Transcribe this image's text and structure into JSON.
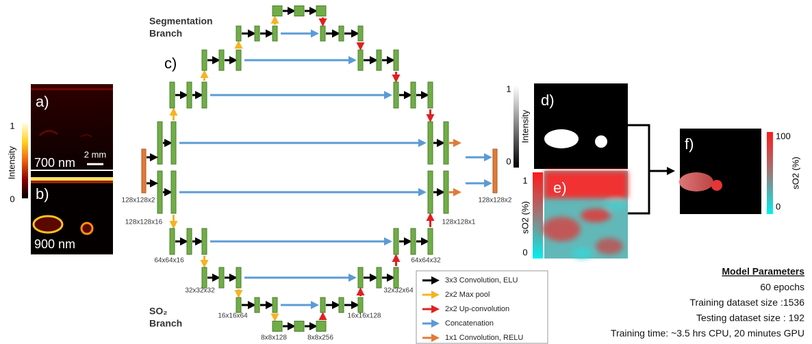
{
  "panel_labels": [
    "a)",
    "b)",
    "c)",
    "d)",
    "e)",
    "f)"
  ],
  "image_a": {
    "wavelength": "700 nm",
    "scale": "2 mm"
  },
  "image_b": {
    "wavelength": "900 nm"
  },
  "colorbar_ab": {
    "label": "Intensity",
    "max": "1",
    "min": "0"
  },
  "colorbar_d": {
    "label": "Intensity",
    "max": "1",
    "min": "0"
  },
  "colorbar_e": {
    "label": "sO2 (%)",
    "max": "1",
    "min": "0"
  },
  "colorbar_f": {
    "label": "sO2 (%)",
    "max": "100",
    "min": "0"
  },
  "network": {
    "segmentation_branch": [
      "Segmentation",
      "Branch"
    ],
    "so2_branch": [
      "SO₂",
      "Branch"
    ],
    "sizes": [
      "128x128x2",
      "128x128x16",
      "64x64x16",
      "32x32x32",
      "16x16x64",
      "8x8x128",
      "8x8x256",
      "16x16x128",
      "32x32x64",
      "64x64x32",
      "128x128x1",
      "128x128x2"
    ]
  },
  "legend": [
    "3x3 Convolution, ELU",
    "2x2 Max pool",
    "2x2 Up-convolution",
    "Concatenation",
    "1x1 Convolution, RELU"
  ],
  "model_parameters": {
    "title": "Model Parameters",
    "lines": [
      "60 epochs",
      "Training dataset size :1536",
      "Testing dataset size : 192",
      "Training time: ~3.5 hrs CPU, 20 minutes GPU"
    ]
  }
}
